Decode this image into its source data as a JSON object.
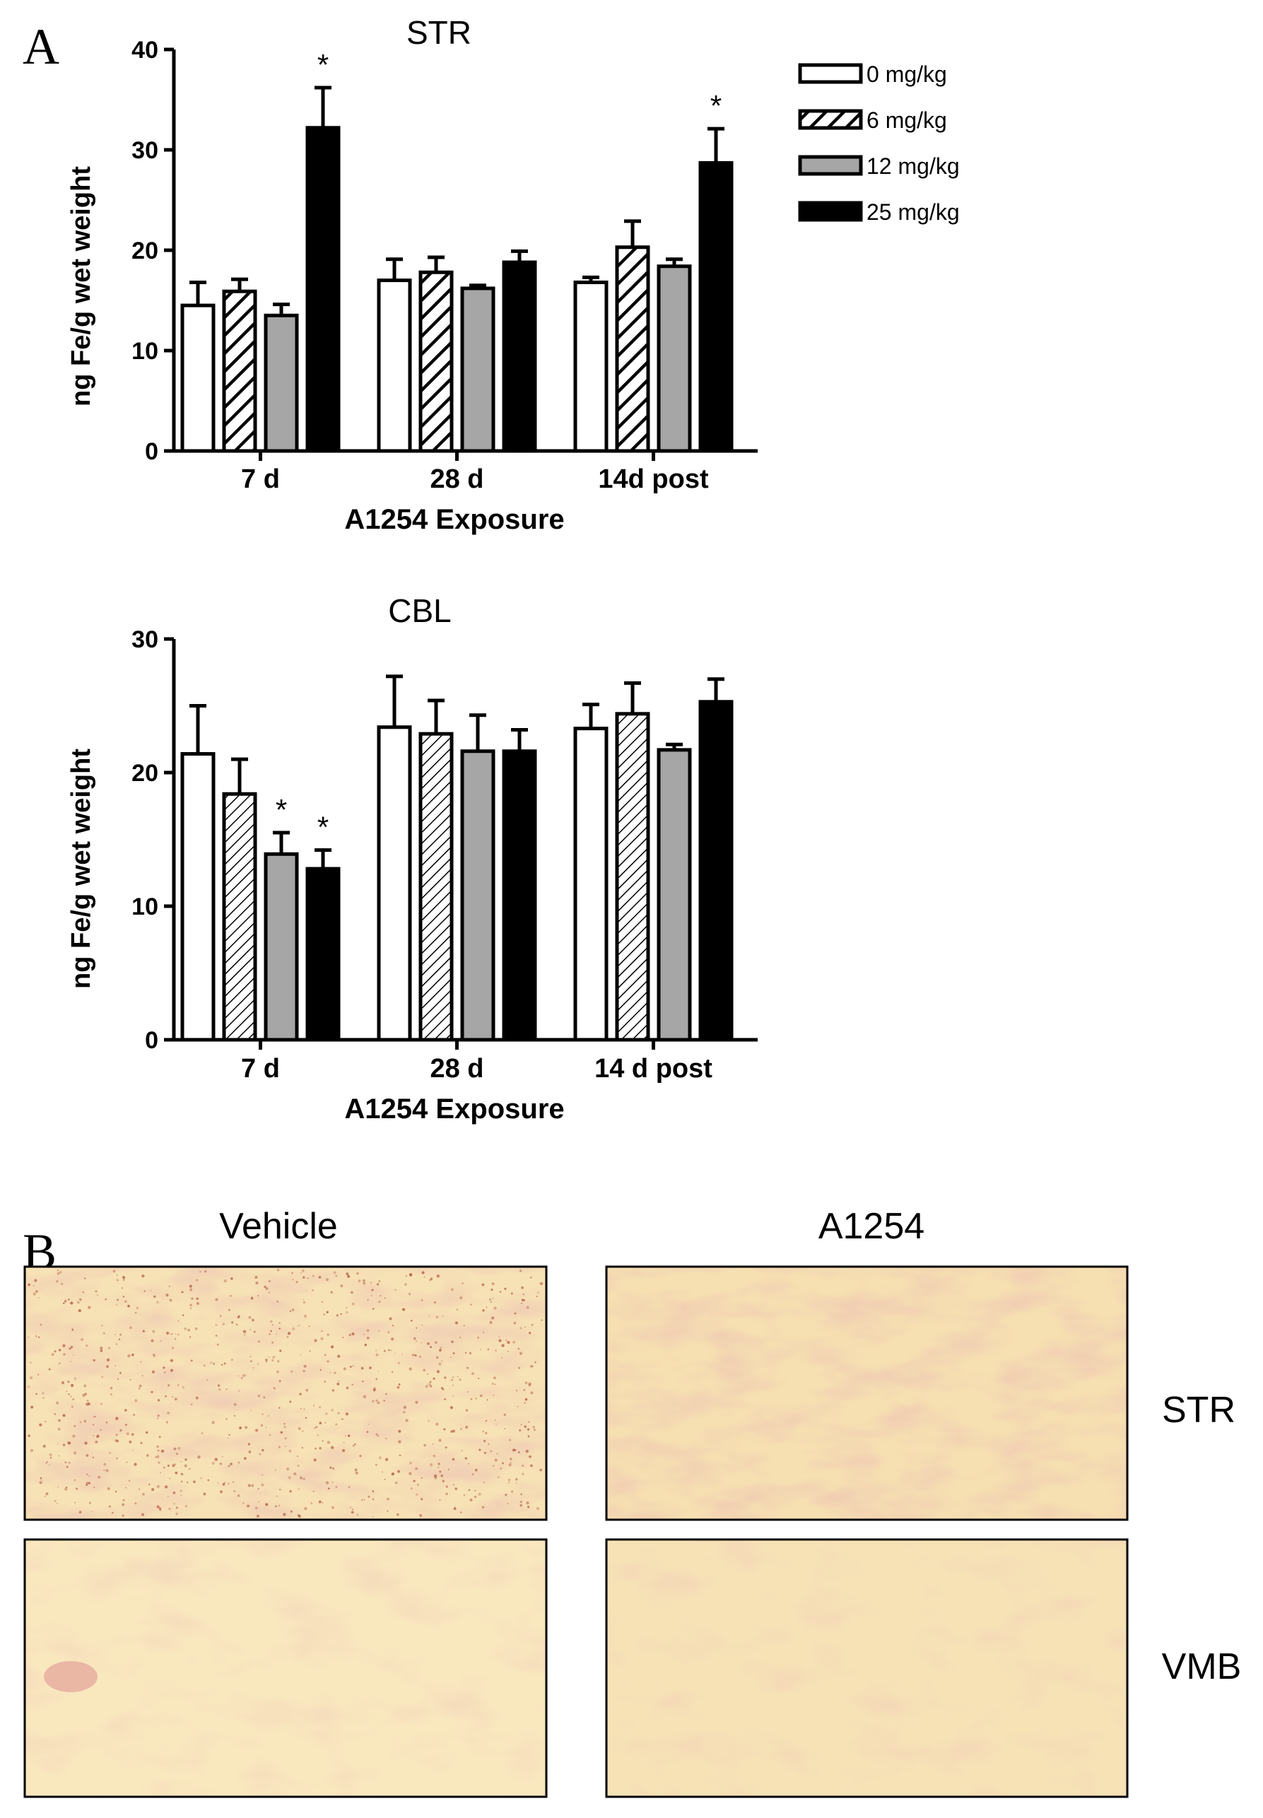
{
  "panel_a_letter": "A",
  "panel_b_letter": "B",
  "legend": {
    "entries": [
      {
        "label": "0 mg/kg",
        "pattern": "open"
      },
      {
        "label": "6 mg/kg",
        "pattern": "hatched"
      },
      {
        "label": "12 mg/kg",
        "pattern": "gray"
      },
      {
        "label": "25 mg/kg",
        "pattern": "solid"
      }
    ]
  },
  "colors": {
    "open_fill": "#ffffff",
    "gray_fill": "#a6a6a6",
    "solid_fill": "#000000",
    "stroke": "#000000",
    "tissue_base": "#f7e2b5",
    "tissue_stain": "#d9967a"
  },
  "chart_data": [
    {
      "type": "bar",
      "title": "STR",
      "xlabel": "A1254 Exposure",
      "ylabel": "ng Fe/g wet weight",
      "ylim": [
        0,
        40
      ],
      "yticks": [
        "0",
        "10",
        "20",
        "30",
        "40"
      ],
      "categories": [
        "7 d",
        "28 d",
        "14d post"
      ],
      "series": [
        {
          "name": "0 mg/kg",
          "values": [
            14.5,
            17.0,
            16.8
          ],
          "errors": [
            2.3,
            2.1,
            0.5
          ]
        },
        {
          "name": "6 mg/kg",
          "values": [
            15.9,
            17.8,
            20.3
          ],
          "errors": [
            1.2,
            1.5,
            2.6
          ]
        },
        {
          "name": "12 mg/kg",
          "values": [
            13.5,
            16.2,
            18.4
          ],
          "errors": [
            1.1,
            0.3,
            0.7
          ]
        },
        {
          "name": "25 mg/kg",
          "values": [
            32.2,
            18.8,
            28.7
          ],
          "errors": [
            4.0,
            1.1,
            3.4
          ]
        }
      ],
      "significant": [
        {
          "category": "7 d",
          "series": "25 mg/kg",
          "mark": "*"
        },
        {
          "category": "14d post",
          "series": "25 mg/kg",
          "mark": "*"
        }
      ]
    },
    {
      "type": "bar",
      "title": "CBL",
      "xlabel": "A1254 Exposure",
      "ylabel": "ng Fe/g wet weight",
      "ylim": [
        0,
        30
      ],
      "yticks": [
        "0",
        "10",
        "20",
        "30"
      ],
      "categories": [
        "7 d",
        "28 d",
        "14 d post"
      ],
      "series": [
        {
          "name": "0 mg/kg",
          "values": [
            21.4,
            23.4,
            23.3
          ],
          "errors": [
            3.6,
            3.8,
            1.8
          ]
        },
        {
          "name": "6 mg/kg",
          "values": [
            18.4,
            22.9,
            24.4
          ],
          "errors": [
            2.6,
            2.5,
            2.3
          ]
        },
        {
          "name": "12 mg/kg",
          "values": [
            13.9,
            21.6,
            21.7
          ],
          "errors": [
            1.6,
            2.7,
            0.4
          ]
        },
        {
          "name": "25 mg/kg",
          "values": [
            12.8,
            21.6,
            25.3
          ],
          "errors": [
            1.4,
            1.6,
            1.7
          ]
        }
      ],
      "significant": [
        {
          "category": "7 d",
          "series": "12 mg/kg",
          "mark": "*"
        },
        {
          "category": "7 d",
          "series": "25 mg/kg",
          "mark": "*"
        }
      ]
    }
  ],
  "panel_b": {
    "columns": [
      "Vehicle",
      "A1254"
    ],
    "rows": [
      "STR",
      "VMB"
    ]
  }
}
